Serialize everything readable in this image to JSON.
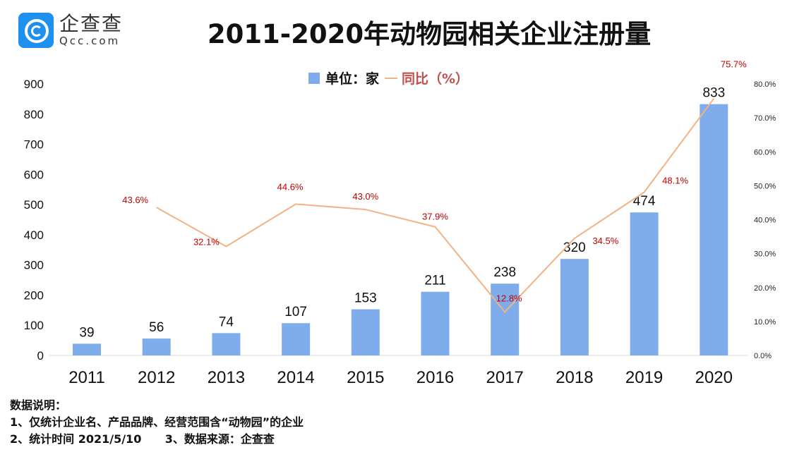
{
  "logo": {
    "cn": "企查查",
    "en": "Qcc.com",
    "brand_color": "#1e90f0"
  },
  "title": "2011-2020年动物园相关企业注册量",
  "legend": {
    "bar_label": "单位：家",
    "line_label": "同比（%）"
  },
  "notes": [
    "数据说明：",
    "1、仅统计企业名、产品品牌、经营范围含“动物园”的企业",
    "2、统计时间 2021/5/10      3、数据来源：企查查"
  ],
  "chart_data": {
    "type": "bar",
    "title": "2011-2020年动物园相关企业注册量",
    "categories": [
      "2011",
      "2012",
      "2013",
      "2014",
      "2015",
      "2016",
      "2017",
      "2018",
      "2019",
      "2020"
    ],
    "series": [
      {
        "name": "单位：家",
        "type": "bar",
        "axis": "left",
        "color": "#7fadeb",
        "values": [
          39,
          56,
          74,
          107,
          153,
          211,
          238,
          320,
          474,
          833
        ]
      },
      {
        "name": "同比（%）",
        "type": "line",
        "axis": "right",
        "color": "#f4b183",
        "label_color": "#c00000",
        "values": [
          null,
          43.6,
          32.1,
          44.6,
          43.0,
          37.9,
          12.8,
          34.5,
          48.1,
          75.7
        ]
      }
    ],
    "left_axis": {
      "range": [
        0,
        900
      ],
      "ticks": [
        "0",
        "100",
        "200",
        "300",
        "400",
        "500",
        "600",
        "700",
        "800",
        "900"
      ]
    },
    "right_axis": {
      "range": [
        0,
        80
      ],
      "ticks": [
        "0.0%",
        "10.0%",
        "20.0%",
        "30.0%",
        "40.0%",
        "50.0%",
        "60.0%",
        "70.0%",
        "80.0%"
      ]
    },
    "grid": false,
    "legend_position": "top"
  }
}
